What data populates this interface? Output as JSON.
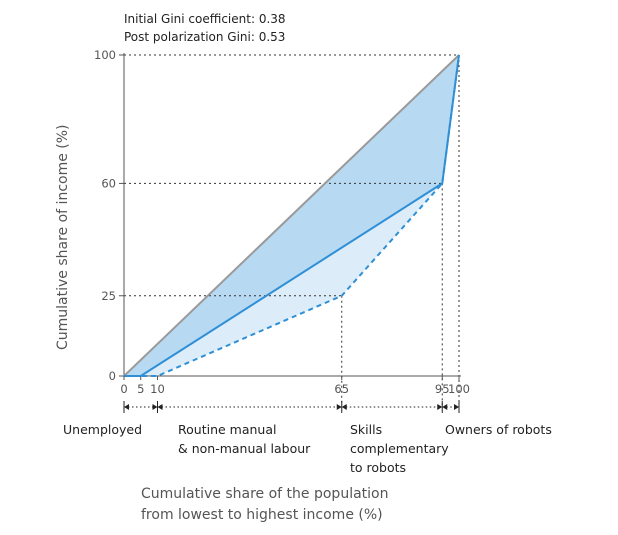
{
  "annotations": {
    "initial_gini": "Initial Gini coefficient: 0.38",
    "post_gini": "Post polarization Gini: 0.53"
  },
  "chart_data": {
    "type": "line",
    "xlabel_lines": [
      "Cumulative share of the population",
      "from lowest to highest income (%)"
    ],
    "ylabel": "Cumulative share of income (%)",
    "xlim": [
      0,
      100
    ],
    "ylim": [
      0,
      100
    ],
    "x_ticks": [
      0,
      5,
      10,
      65,
      95,
      100
    ],
    "x_tick_labels": [
      "0",
      "5",
      "10",
      "65",
      "95",
      "100"
    ],
    "y_ticks": [
      0,
      25,
      60,
      100
    ],
    "y_tick_labels": [
      "0",
      "25",
      "60",
      "100"
    ],
    "series": [
      {
        "key": "equality",
        "style": "solid",
        "color": "#9a9a9a",
        "x": [
          0,
          100
        ],
        "y": [
          0,
          100
        ]
      },
      {
        "key": "initial",
        "style": "solid",
        "color": "#2f8fd6",
        "x": [
          0,
          5,
          95,
          100
        ],
        "y": [
          0,
          0,
          60,
          100
        ]
      },
      {
        "key": "post",
        "style": "dashed",
        "color": "#2f8fd6",
        "x": [
          0,
          10,
          65,
          95,
          100
        ],
        "y": [
          0,
          0,
          25,
          60,
          100
        ]
      }
    ],
    "fills": {
      "initial_gap": "#b7d9f2",
      "post_gap": "#dcedf9"
    },
    "guides": {
      "color": "#333333"
    },
    "segments": [
      {
        "name": "unemployed",
        "label": "Unemployed",
        "x_from": 0,
        "x_to": 10
      },
      {
        "name": "routine",
        "label": "Routine manual\n& non-manual labour",
        "x_from": 10,
        "x_to": 65
      },
      {
        "name": "skills",
        "label": "Skills\ncomplementary\nto robots",
        "x_from": 65,
        "x_to": 95
      },
      {
        "name": "owners",
        "label": "Owners of robots",
        "x_from": 95,
        "x_to": 100
      }
    ]
  }
}
